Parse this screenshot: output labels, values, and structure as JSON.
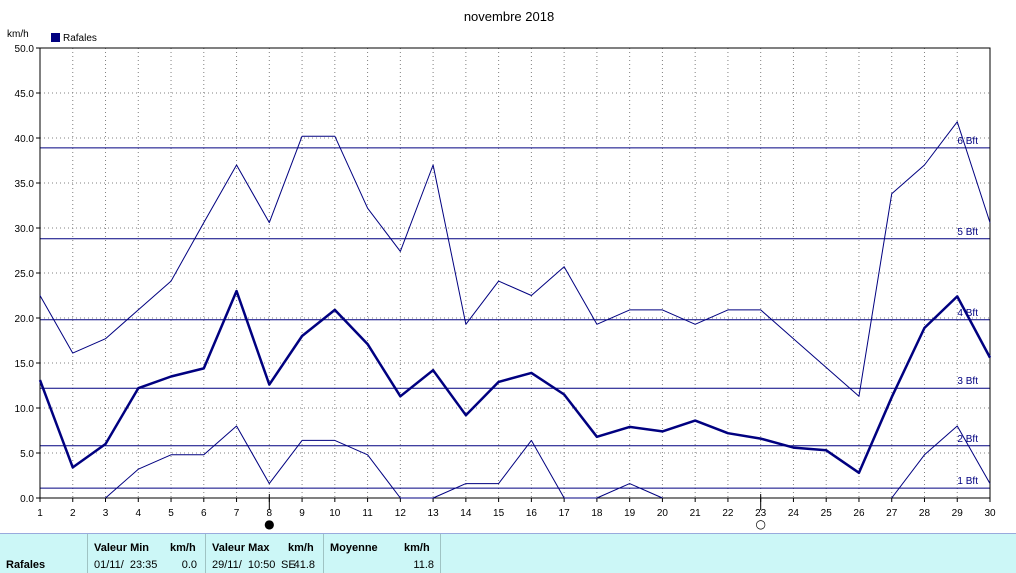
{
  "chart_data": {
    "type": "line",
    "title": "novembre 2018",
    "ylabel": "km/h",
    "legend": {
      "label": "Rafales",
      "color": "#000080",
      "placement": "top-left"
    },
    "x": [
      1,
      2,
      3,
      4,
      5,
      6,
      7,
      8,
      9,
      10,
      11,
      12,
      13,
      14,
      15,
      16,
      17,
      18,
      19,
      20,
      21,
      22,
      23,
      24,
      25,
      26,
      27,
      28,
      29,
      30
    ],
    "xlim": [
      1,
      30
    ],
    "ylim": [
      0,
      50
    ],
    "yticks": [
      "0.0",
      "5.0",
      "10.0",
      "15.0",
      "20.0",
      "25.0",
      "30.0",
      "35.0",
      "40.0",
      "45.0",
      "50.0"
    ],
    "xticks": [
      "1",
      "2",
      "3",
      "4",
      "5",
      "6",
      "7",
      "8",
      "9",
      "10",
      "11",
      "12",
      "13",
      "14",
      "15",
      "16",
      "17",
      "18",
      "19",
      "20",
      "21",
      "22",
      "23",
      "24",
      "25",
      "26",
      "27",
      "28",
      "29",
      "30"
    ],
    "grid": true,
    "series": [
      {
        "role": "max",
        "values": [
          22.5,
          16.1,
          17.7,
          20.9,
          24.1,
          30.6,
          37.0,
          30.6,
          40.2,
          40.2,
          32.2,
          27.4,
          37.0,
          19.3,
          24.1,
          22.5,
          25.7,
          19.3,
          20.9,
          20.9,
          19.3,
          20.9,
          20.9,
          17.7,
          14.5,
          11.3,
          33.8,
          37.0,
          41.8,
          30.6
        ]
      },
      {
        "role": "mean",
        "values": [
          13.1,
          3.4,
          6.0,
          12.2,
          13.5,
          14.4,
          23.0,
          12.6,
          18.0,
          20.9,
          17.1,
          11.3,
          14.2,
          9.2,
          12.9,
          13.9,
          11.5,
          6.8,
          7.9,
          7.4,
          8.6,
          7.2,
          6.6,
          5.6,
          5.3,
          2.8,
          11.2,
          18.9,
          22.4,
          15.6
        ]
      },
      {
        "role": "min",
        "values": [
          null,
          null,
          0.0,
          3.2,
          4.8,
          4.8,
          8.0,
          1.6,
          6.4,
          6.4,
          4.8,
          0.0,
          0.0,
          1.6,
          1.6,
          6.4,
          0.0,
          0.0,
          1.6,
          0.0,
          null,
          null,
          null,
          null,
          null,
          null,
          0.0,
          4.8,
          8.0,
          1.6
        ]
      }
    ],
    "beaufort_lines": [
      {
        "label": "1 Bft",
        "value": 1.1
      },
      {
        "label": "2 Bft",
        "value": 5.8
      },
      {
        "label": "3 Bft",
        "value": 12.2
      },
      {
        "label": "4 Bft",
        "value": 19.8
      },
      {
        "label": "5 Bft",
        "value": 28.8
      },
      {
        "label": "6 Bft",
        "value": 38.9
      }
    ],
    "moon_phases": [
      {
        "day": 8,
        "symbol": "●"
      },
      {
        "day": 23,
        "symbol": "○"
      }
    ],
    "colors": {
      "line": "#000080",
      "grid": "#808080",
      "frame": "#000000"
    }
  },
  "stats": {
    "series_name": "Rafales",
    "min_header": "Valeur Min",
    "min_unit": "km/h",
    "min_date": "01/11/  23:35",
    "min_value": "0.0",
    "max_header": "Valeur Max",
    "max_unit": "km/h",
    "max_date": "29/11/  10:50",
    "max_dir": "SE",
    "max_value": "41.8",
    "mean_header": "Moyenne",
    "mean_unit": "km/h",
    "mean_value": "11.8"
  }
}
